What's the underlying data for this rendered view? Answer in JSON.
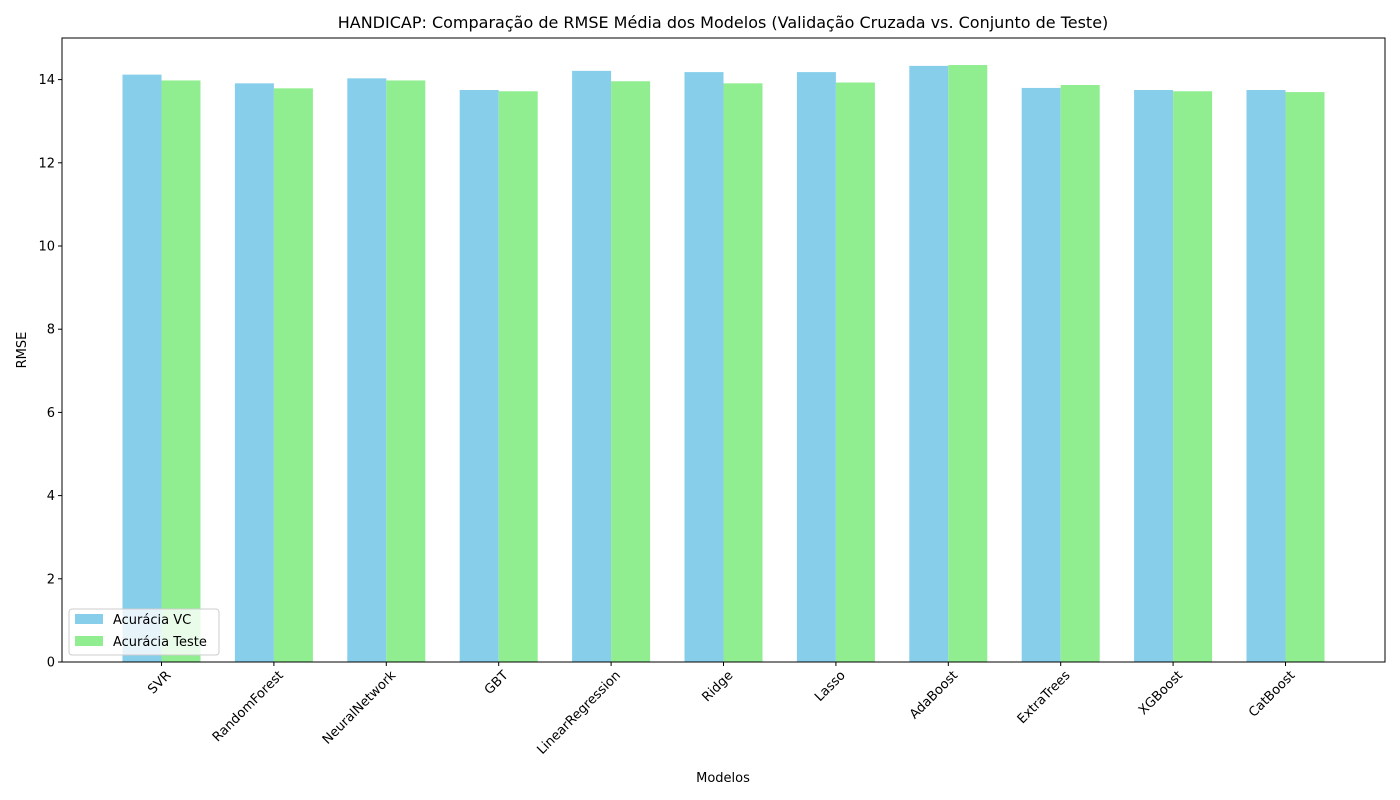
{
  "chart_data": {
    "type": "bar",
    "title": "HANDICAP: Comparação de RMSE Média dos Modelos (Validação Cruzada vs. Conjunto de Teste)",
    "xlabel": "Modelos",
    "ylabel": "RMSE",
    "ylim": [
      0,
      15
    ],
    "yticks": [
      0,
      2,
      4,
      6,
      8,
      10,
      12,
      14
    ],
    "grid": false,
    "legend_position": "lower-left",
    "categories": [
      "SVR",
      "RandomForest",
      "NeuralNetwork",
      "GBT",
      "LinearRegression",
      "Ridge",
      "Lasso",
      "AdaBoost",
      "ExtraTrees",
      "XGBoost",
      "CatBoost"
    ],
    "series": [
      {
        "name": "Acurácia VC",
        "color": "#87ceeb",
        "values": [
          14.12,
          13.91,
          14.03,
          13.75,
          14.21,
          14.18,
          14.18,
          14.33,
          13.8,
          13.75,
          13.75
        ]
      },
      {
        "name": "Acurácia Teste",
        "color": "#90ee90",
        "values": [
          13.98,
          13.79,
          13.98,
          13.72,
          13.96,
          13.91,
          13.93,
          14.35,
          13.87,
          13.72,
          13.7
        ]
      }
    ]
  }
}
